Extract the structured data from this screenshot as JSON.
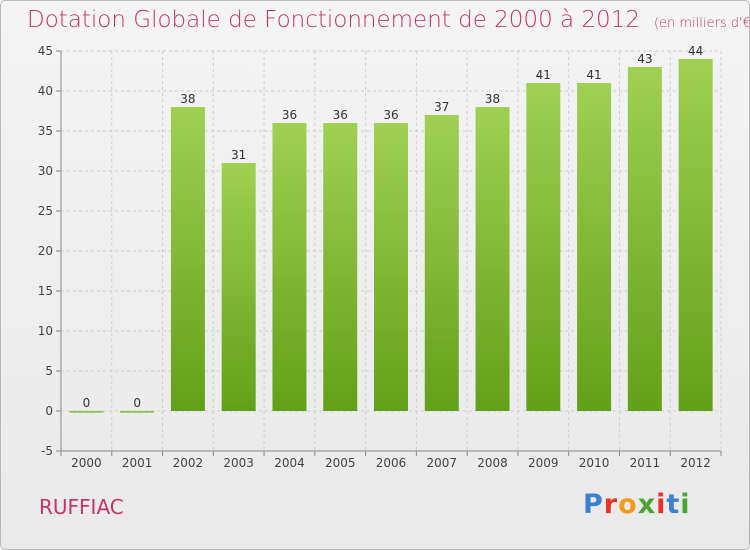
{
  "title": "Dotation Globale de Fonctionnement de 2000 à 2012",
  "subtitle": "(en milliers d'€)",
  "commune": "RUFFIAC",
  "logo": {
    "text": "Proxiti",
    "colors": [
      "#3a7fd0",
      "#e8332a",
      "#f19b1d",
      "#4aa532",
      "#e8332a",
      "#3a7fd0",
      "#4aa532"
    ]
  },
  "chart_data": {
    "type": "bar",
    "categories": [
      "2000",
      "2001",
      "2002",
      "2003",
      "2004",
      "2005",
      "2006",
      "2007",
      "2008",
      "2009",
      "2010",
      "2011",
      "2012"
    ],
    "values": [
      0,
      0,
      38,
      31,
      36,
      36,
      36,
      37,
      38,
      41,
      41,
      43,
      44
    ],
    "data_labels": [
      "0",
      "0",
      "38",
      "31",
      "36",
      "36",
      "36",
      "37",
      "38",
      "41",
      "41",
      "43",
      "44"
    ],
    "yticks": [
      -5,
      0,
      5,
      10,
      15,
      20,
      25,
      30,
      35,
      40,
      45
    ],
    "ylim": [
      -5,
      45
    ],
    "grid": true,
    "bar_color_top": "#9fd053",
    "bar_color_bottom": "#63a019"
  }
}
